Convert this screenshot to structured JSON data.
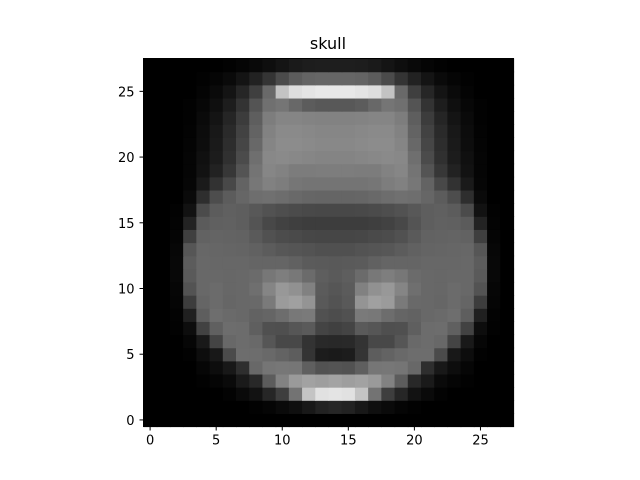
{
  "chart_data": {
    "type": "heatmap",
    "title": "skull",
    "colormap": "gray",
    "rows": 28,
    "cols": 28,
    "xlim": [
      -0.5,
      27.5
    ],
    "ylim": [
      27.5,
      -0.5
    ],
    "xticks": [
      0,
      5,
      10,
      15,
      20,
      25
    ],
    "yticks": [
      0,
      5,
      10,
      15,
      20,
      25
    ],
    "vmin": 0,
    "vmax": 255,
    "values": [
      [
        0,
        0,
        0,
        0,
        0,
        0,
        0,
        0,
        0,
        0,
        0,
        0,
        0,
        0,
        0,
        0,
        0,
        0,
        0,
        0,
        0,
        0,
        0,
        0,
        0,
        0,
        0,
        0
      ],
      [
        0,
        0,
        0,
        0,
        0,
        0,
        0,
        0,
        2,
        5,
        10,
        15,
        24,
        34,
        38,
        34,
        24,
        15,
        10,
        5,
        2,
        0,
        0,
        0,
        0,
        0,
        0,
        0
      ],
      [
        0,
        0,
        0,
        0,
        0,
        0,
        3,
        10,
        18,
        38,
        62,
        115,
        196,
        225,
        228,
        225,
        196,
        115,
        62,
        38,
        18,
        10,
        3,
        0,
        0,
        0,
        0,
        0
      ],
      [
        0,
        0,
        0,
        0,
        2,
        5,
        10,
        26,
        40,
        92,
        130,
        154,
        162,
        158,
        163,
        158,
        162,
        154,
        130,
        92,
        40,
        26,
        10,
        5,
        2,
        0,
        0,
        0
      ],
      [
        0,
        0,
        0,
        0,
        6,
        13,
        24,
        46,
        104,
        117,
        119,
        118,
        95,
        82,
        84,
        82,
        95,
        118,
        119,
        117,
        104,
        46,
        24,
        13,
        6,
        0,
        0,
        0
      ],
      [
        0,
        0,
        0,
        2,
        13,
        24,
        75,
        109,
        109,
        105,
        99,
        93,
        52,
        28,
        26,
        28,
        52,
        93,
        99,
        105,
        109,
        109,
        75,
        24,
        13,
        2,
        0,
        0
      ],
      [
        0,
        0,
        0,
        6,
        25,
        68,
        104,
        108,
        105,
        86,
        72,
        72,
        51,
        41,
        40,
        41,
        51,
        72,
        72,
        86,
        105,
        108,
        104,
        68,
        25,
        6,
        0,
        0
      ],
      [
        0,
        0,
        2,
        13,
        66,
        96,
        109,
        108,
        95,
        80,
        79,
        86,
        90,
        68,
        64,
        68,
        90,
        86,
        79,
        80,
        95,
        108,
        109,
        96,
        66,
        13,
        2,
        0
      ],
      [
        0,
        0,
        3,
        32,
        94,
        110,
        106,
        104,
        98,
        101,
        109,
        120,
        122,
        81,
        77,
        81,
        122,
        120,
        109,
        101,
        98,
        104,
        106,
        110,
        94,
        32,
        3,
        0
      ],
      [
        0,
        0,
        5,
        61,
        101,
        107,
        102,
        104,
        105,
        122,
        155,
        160,
        148,
        89,
        83,
        89,
        148,
        160,
        155,
        122,
        105,
        104,
        102,
        107,
        101,
        61,
        5,
        0
      ],
      [
        0,
        0,
        6,
        83,
        104,
        107,
        103,
        104,
        111,
        133,
        152,
        145,
        129,
        91,
        86,
        91,
        129,
        145,
        152,
        133,
        111,
        104,
        103,
        107,
        104,
        83,
        6,
        0
      ],
      [
        0,
        0,
        8,
        90,
        104,
        104,
        103,
        104,
        107,
        119,
        126,
        120,
        107,
        94,
        90,
        94,
        107,
        120,
        126,
        119,
        107,
        104,
        103,
        104,
        104,
        90,
        8,
        0
      ],
      [
        0,
        0,
        8,
        92,
        104,
        103,
        103,
        103,
        101,
        101,
        101,
        97,
        91,
        90,
        89,
        90,
        91,
        97,
        101,
        101,
        101,
        103,
        103,
        103,
        104,
        92,
        8,
        0
      ],
      [
        0,
        0,
        7,
        86,
        103,
        102,
        101,
        100,
        97,
        92,
        87,
        85,
        83,
        80,
        80,
        80,
        83,
        85,
        87,
        92,
        97,
        100,
        101,
        102,
        103,
        86,
        7,
        0
      ],
      [
        0,
        0,
        5,
        63,
        98,
        100,
        99,
        98,
        90,
        81,
        76,
        74,
        71,
        70,
        70,
        70,
        71,
        74,
        76,
        81,
        90,
        98,
        99,
        100,
        98,
        63,
        5,
        0
      ],
      [
        0,
        0,
        3,
        35,
        91,
        96,
        97,
        94,
        84,
        72,
        66,
        63,
        61,
        61,
        61,
        61,
        61,
        63,
        66,
        72,
        84,
        94,
        97,
        96,
        91,
        35,
        3,
        0
      ],
      [
        0,
        0,
        2,
        18,
        75,
        92,
        96,
        94,
        88,
        82,
        78,
        75,
        73,
        72,
        72,
        72,
        73,
        75,
        78,
        82,
        88,
        94,
        96,
        92,
        75,
        18,
        2,
        0
      ],
      [
        0,
        0,
        0,
        10,
        46,
        77,
        92,
        102,
        110,
        112,
        109,
        105,
        102,
        101,
        101,
        101,
        102,
        105,
        109,
        112,
        110,
        102,
        92,
        77,
        46,
        10,
        0,
        0
      ],
      [
        0,
        0,
        0,
        6,
        26,
        50,
        72,
        99,
        119,
        129,
        125,
        118,
        116,
        116,
        116,
        116,
        116,
        118,
        125,
        129,
        119,
        99,
        72,
        50,
        26,
        6,
        0,
        0
      ],
      [
        0,
        0,
        0,
        5,
        18,
        34,
        55,
        84,
        116,
        134,
        130,
        124,
        124,
        125,
        125,
        125,
        124,
        124,
        130,
        134,
        116,
        84,
        55,
        34,
        18,
        5,
        0,
        0
      ],
      [
        0,
        0,
        0,
        5,
        16,
        28,
        48,
        75,
        111,
        136,
        138,
        136,
        134,
        132,
        132,
        132,
        134,
        136,
        138,
        136,
        111,
        75,
        48,
        28,
        16,
        5,
        0,
        0
      ],
      [
        0,
        0,
        0,
        4,
        13,
        26,
        45,
        70,
        104,
        133,
        140,
        140,
        138,
        136,
        136,
        136,
        138,
        140,
        140,
        133,
        104,
        70,
        45,
        26,
        13,
        4,
        0,
        0
      ],
      [
        0,
        0,
        0,
        3,
        12,
        24,
        42,
        66,
        99,
        130,
        138,
        138,
        136,
        134,
        134,
        134,
        136,
        138,
        138,
        130,
        99,
        66,
        42,
        24,
        12,
        3,
        0,
        0
      ],
      [
        0,
        0,
        0,
        2,
        10,
        20,
        37,
        60,
        94,
        125,
        133,
        133,
        131,
        130,
        130,
        130,
        131,
        133,
        133,
        125,
        94,
        60,
        37,
        20,
        10,
        2,
        0,
        0
      ],
      [
        0,
        0,
        0,
        2,
        7,
        15,
        29,
        51,
        84,
        112,
        117,
        104,
        92,
        88,
        88,
        88,
        92,
        104,
        117,
        112,
        84,
        51,
        29,
        15,
        7,
        2,
        0,
        0
      ],
      [
        0,
        0,
        0,
        0,
        4,
        10,
        20,
        38,
        63,
        105,
        195,
        222,
        228,
        232,
        232,
        232,
        228,
        222,
        195,
        105,
        63,
        38,
        20,
        10,
        4,
        0,
        0,
        0
      ],
      [
        0,
        0,
        0,
        0,
        2,
        5,
        10,
        20,
        34,
        52,
        75,
        92,
        100,
        102,
        102,
        102,
        100,
        92,
        75,
        52,
        34,
        20,
        10,
        5,
        2,
        0,
        0,
        0
      ],
      [
        0,
        0,
        0,
        0,
        0,
        0,
        2,
        5,
        9,
        14,
        20,
        26,
        29,
        30,
        30,
        30,
        29,
        26,
        20,
        14,
        9,
        5,
        2,
        0,
        0,
        0,
        0,
        0
      ]
    ]
  }
}
